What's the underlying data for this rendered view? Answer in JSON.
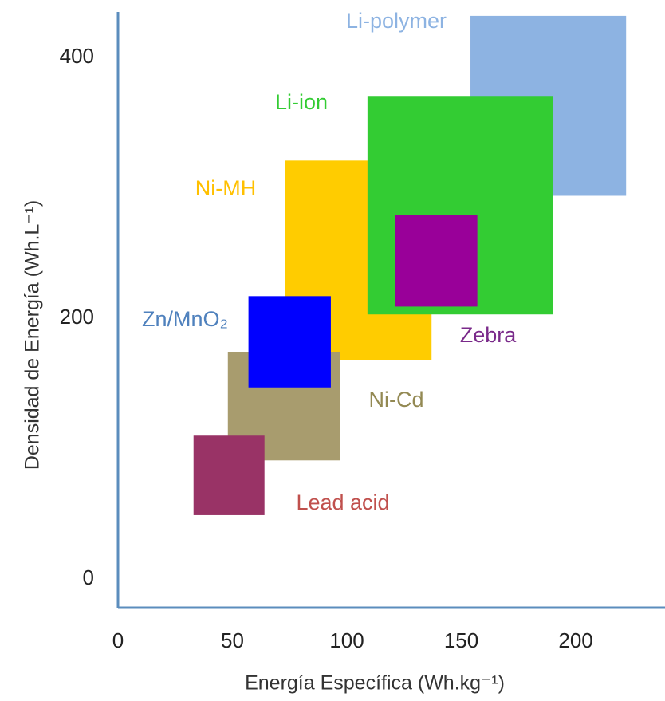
{
  "chart_data": {
    "type": "range-box",
    "x_label": "Energía Específica (Wh.kg⁻¹)",
    "y_label": "Densidad de Energía (Wh.L⁻¹)",
    "xlim": [
      0,
      239
    ],
    "ylim": [
      -22,
      435
    ],
    "xticks": [
      0,
      50,
      100,
      150,
      200
    ],
    "yticks": [
      0,
      200,
      400
    ],
    "axis_color": "#5b8dbd",
    "series": [
      {
        "name": "Li-polymer",
        "color": "#8db3e2",
        "label_color": "#8db3e2",
        "x": [
          154,
          222
        ],
        "y": [
          294,
          432
        ]
      },
      {
        "name": "Ni-MH",
        "color": "#ffcc00",
        "label_color": "#ffc000",
        "x": [
          73,
          137
        ],
        "y": [
          168,
          321
        ]
      },
      {
        "name": "Li-ion",
        "color": "#33cc33",
        "label_color": "#33cc33",
        "x": [
          109,
          190
        ],
        "y": [
          203,
          370
        ]
      },
      {
        "name": "Zebra",
        "color": "#990099",
        "label_color": "#7a2a8a",
        "x": [
          121,
          157
        ],
        "y": [
          209,
          279
        ]
      },
      {
        "name": "Ni-Cd",
        "color": "#a89c6e",
        "label_color": "#938953",
        "x": [
          48,
          97
        ],
        "y": [
          91,
          174
        ]
      },
      {
        "name": "Zn/MnO₂",
        "color": "#0000ff",
        "label_color": "#4f81bd",
        "x": [
          57,
          93
        ],
        "y": [
          147,
          217
        ]
      },
      {
        "name": "Lead acid",
        "color": "#993366",
        "label_color": "#c0504d",
        "x": [
          33,
          64
        ],
        "y": [
          49,
          110
        ]
      }
    ]
  }
}
